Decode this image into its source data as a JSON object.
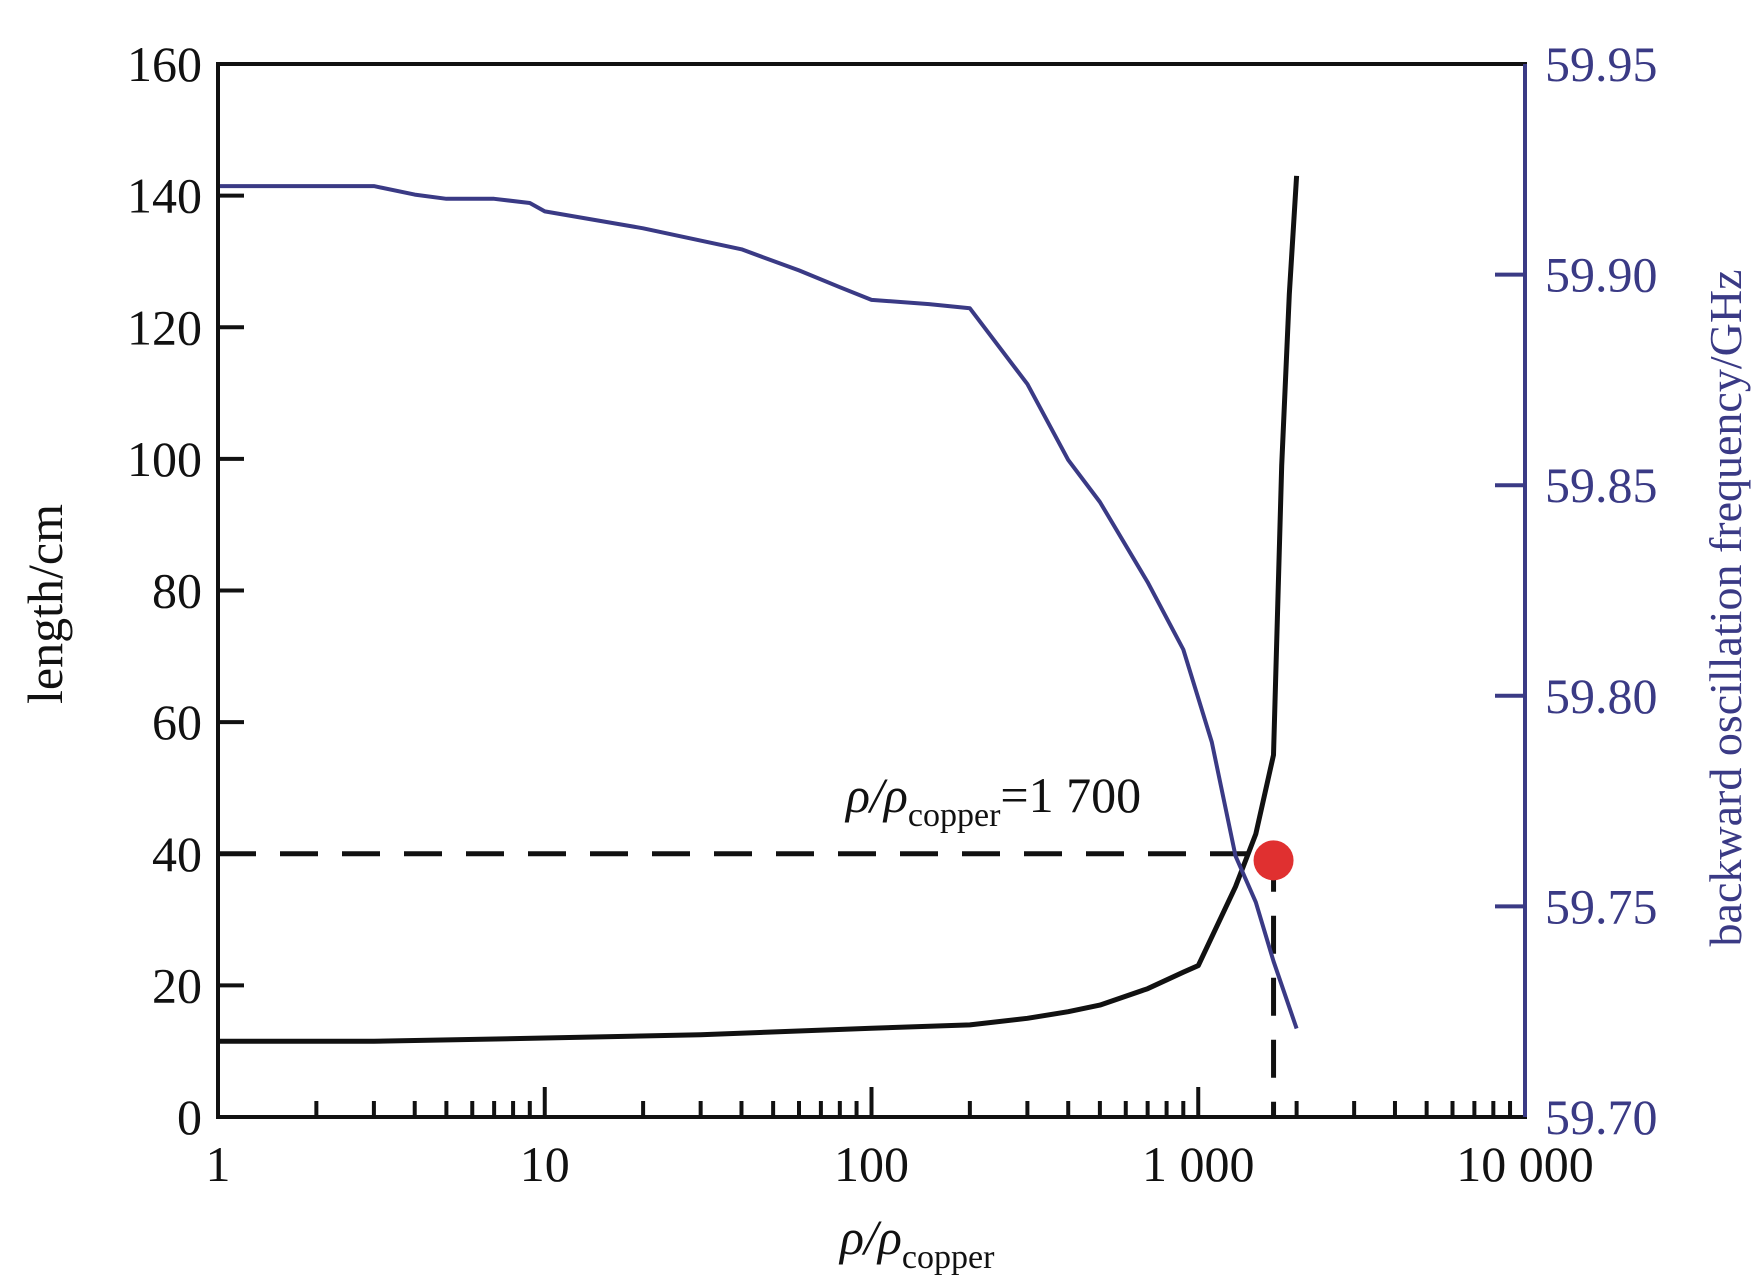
{
  "chart_data": {
    "type": "line",
    "x_scale": "log",
    "xlim": [
      1,
      10000
    ],
    "ylim_left": [
      0,
      160
    ],
    "ylim_right": [
      59.7,
      59.95
    ],
    "grid": false,
    "xlabel": {
      "main": "ρ/ρ",
      "sub": "copper"
    },
    "ylabel_left": "length/cm",
    "ylabel_right": "backward oscillation frequency/GHz",
    "x_ticks": [
      {
        "value": 1,
        "label": "1"
      },
      {
        "value": 10,
        "label": "10"
      },
      {
        "value": 100,
        "label": "100"
      },
      {
        "value": 1000,
        "label": "1 000"
      },
      {
        "value": 10000,
        "label": "10 000"
      }
    ],
    "y_left_ticks": [
      "0",
      "20",
      "40",
      "60",
      "80",
      "100",
      "120",
      "140",
      "160"
    ],
    "y_right_ticks": [
      "59.70",
      "59.75",
      "59.80",
      "59.85",
      "59.90",
      "59.95"
    ],
    "series": [
      {
        "axis": "left",
        "color": "#111111",
        "x": [
          1,
          3,
          10,
          30,
          100,
          200,
          300,
          400,
          500,
          700,
          900,
          1000,
          1300,
          1500,
          1700,
          1800,
          1900,
          2000
        ],
        "y": [
          11.5,
          11.5,
          12,
          12.5,
          13.5,
          14,
          15,
          16,
          17,
          19.5,
          22,
          23,
          35,
          43,
          55,
          99,
          125,
          143
        ]
      },
      {
        "axis": "right",
        "color": "#3a3a85",
        "x": [
          1,
          3,
          4,
          5,
          7,
          9,
          10,
          20,
          40,
          60,
          80,
          100,
          150,
          200,
          300,
          400,
          500,
          700,
          900,
          1100,
          1300,
          1500,
          1700,
          2000
        ],
        "y": [
          59.921,
          59.921,
          59.919,
          59.918,
          59.918,
          59.917,
          59.915,
          59.911,
          59.906,
          59.901,
          59.897,
          59.894,
          59.893,
          59.892,
          59.874,
          59.856,
          59.846,
          59.827,
          59.811,
          59.789,
          59.762,
          59.751,
          59.737,
          59.721
        ]
      }
    ],
    "marker": {
      "x": 1700,
      "y_left": 39,
      "color": "#e03030"
    },
    "reference_lines": {
      "y_left": 40,
      "x": 1700
    },
    "annotation": {
      "main": "ρ/ρ",
      "sub": "copper",
      "suffix": "=1 700"
    }
  }
}
